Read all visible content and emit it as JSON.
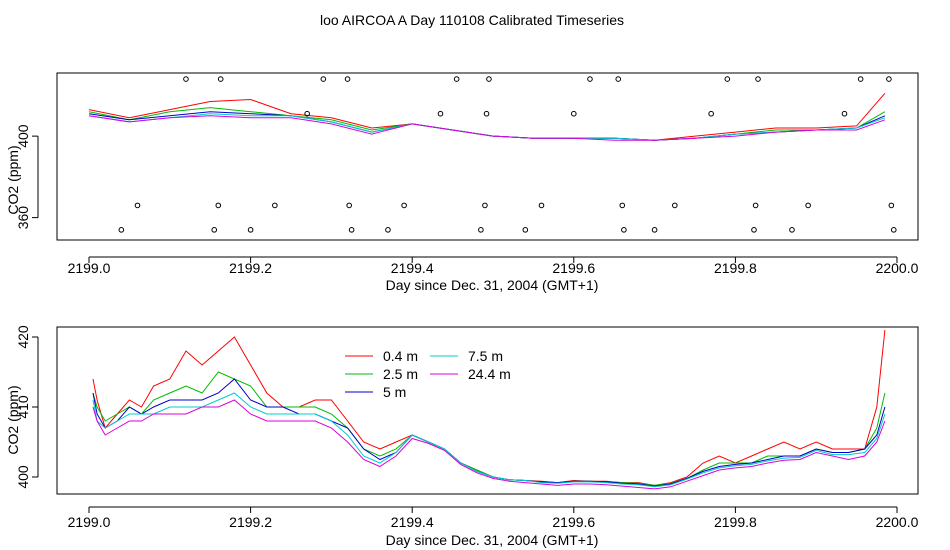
{
  "title": "loo AIRCOA A  Day 110108  Calibrated Timeseries",
  "colors": {
    "0.4 m": "#ff0000",
    "2.5 m": "#00bb00",
    "5 m": "#0000cc",
    "7.5 m": "#00cccc",
    "24.4 m": "#dd00dd"
  },
  "chart_data": [
    {
      "type": "line",
      "xlabel": "Day since Dec. 31, 2004 (GMT+1)",
      "ylabel": "CO2 (ppm)",
      "xlim": [
        2199.0,
        2200.0
      ],
      "ylim": [
        350,
        430
      ],
      "x_ticks": [
        "2199.0",
        "2199.2",
        "2199.4",
        "2199.6",
        "2199.8",
        "2200.0"
      ],
      "y_ticks": [
        "360",
        "400"
      ],
      "x": [
        2199.0,
        2199.05,
        2199.1,
        2199.15,
        2199.2,
        2199.25,
        2199.3,
        2199.35,
        2199.4,
        2199.45,
        2199.5,
        2199.55,
        2199.6,
        2199.65,
        2199.7,
        2199.75,
        2199.8,
        2199.85,
        2199.9,
        2199.95,
        2199.985
      ],
      "series": [
        {
          "name": "0.4 m",
          "values": [
            413,
            409,
            413,
            417,
            418,
            411,
            409,
            404,
            406,
            403,
            400,
            399,
            399,
            399,
            398,
            400,
            402,
            404,
            404,
            405,
            421
          ]
        },
        {
          "name": "2.5 m",
          "values": [
            412,
            408,
            412,
            414,
            412,
            410,
            408,
            403,
            406,
            403,
            400,
            399,
            399,
            399,
            398,
            399,
            401,
            403,
            403,
            404,
            412
          ]
        },
        {
          "name": "5 m",
          "values": [
            411,
            408,
            410,
            412,
            411,
            410,
            407,
            402,
            406,
            403,
            400,
            399,
            399,
            399,
            398,
            399,
            401,
            402,
            403,
            404,
            410
          ]
        },
        {
          "name": "7.5 m",
          "values": [
            410,
            407,
            409,
            411,
            410,
            410,
            407,
            402,
            406,
            403,
            400,
            399,
            399,
            399,
            398,
            399,
            401,
            402,
            403,
            404,
            409
          ]
        },
        {
          "name": "24.4 m",
          "values": [
            410,
            407,
            409,
            410,
            409,
            409,
            406,
            401,
            406,
            403,
            400,
            399,
            399,
            398,
            398,
            399,
            400,
            402,
            403,
            403,
            408
          ]
        }
      ],
      "markers": {
        "x": [
          2199.04,
          2199.06,
          2199.12,
          2199.155,
          2199.16,
          2199.163,
          2199.2,
          2199.23,
          2199.27,
          2199.29,
          2199.32,
          2199.322,
          2199.325,
          2199.37,
          2199.39,
          2199.435,
          2199.455,
          2199.485,
          2199.49,
          2199.492,
          2199.495,
          2199.54,
          2199.56,
          2199.6,
          2199.62,
          2199.655,
          2199.66,
          2199.662,
          2199.7,
          2199.725,
          2199.77,
          2199.79,
          2199.823,
          2199.825,
          2199.828,
          2199.87,
          2199.89,
          2199.935,
          2199.955,
          2199.99,
          2199.993,
          2199.996
        ],
        "y": [
          354,
          366,
          428,
          354,
          366,
          428,
          354,
          366,
          411,
          428,
          428,
          366,
          354,
          354,
          366,
          411,
          428,
          354,
          366,
          411,
          428,
          354,
          366,
          411,
          428,
          428,
          366,
          354,
          354,
          366,
          411,
          428,
          354,
          366,
          428,
          354,
          366,
          411,
          428,
          428,
          366,
          354
        ]
      }
    },
    {
      "type": "line",
      "xlabel": "Day since Dec. 31, 2004 (GMT+1)",
      "ylabel": "CO2 (ppm)",
      "xlim": [
        2199.0,
        2200.0
      ],
      "ylim": [
        398,
        421
      ],
      "x_ticks": [
        "2199.0",
        "2199.2",
        "2199.4",
        "2199.6",
        "2199.8",
        "2200.0"
      ],
      "y_ticks": [
        "400",
        "410",
        "420"
      ],
      "legend": [
        "0.4 m",
        "2.5 m",
        "5 m",
        "7.5 m",
        "24.4 m"
      ],
      "legend_position": "top-center",
      "x": [
        2199.005,
        2199.01,
        2199.02,
        2199.035,
        2199.05,
        2199.065,
        2199.08,
        2199.1,
        2199.12,
        2199.14,
        2199.16,
        2199.18,
        2199.2,
        2199.22,
        2199.24,
        2199.26,
        2199.28,
        2199.3,
        2199.32,
        2199.34,
        2199.36,
        2199.38,
        2199.4,
        2199.42,
        2199.44,
        2199.46,
        2199.48,
        2199.5,
        2199.52,
        2199.54,
        2199.56,
        2199.58,
        2199.6,
        2199.62,
        2199.64,
        2199.66,
        2199.68,
        2199.7,
        2199.72,
        2199.74,
        2199.76,
        2199.78,
        2199.8,
        2199.82,
        2199.84,
        2199.86,
        2199.88,
        2199.9,
        2199.92,
        2199.94,
        2199.96,
        2199.975,
        2199.985
      ],
      "series": [
        {
          "name": "0.4 m",
          "values": [
            414,
            411,
            407,
            409,
            411,
            410,
            413,
            414,
            418,
            416,
            418,
            420,
            416,
            412,
            410,
            410,
            411,
            411,
            408,
            405,
            404,
            405,
            406,
            405,
            404,
            402,
            401,
            400,
            399.6,
            399.5,
            399.4,
            399.2,
            399.5,
            399.4,
            399.4,
            399.2,
            399.2,
            398.8,
            399.2,
            400,
            402,
            403,
            402,
            403,
            404,
            405,
            404,
            405,
            404,
            404,
            404,
            410,
            421
          ]
        },
        {
          "name": "2.5 m",
          "values": [
            412,
            410,
            408,
            409,
            410,
            409,
            411,
            412,
            413,
            412,
            415,
            414,
            413,
            410,
            410,
            410,
            410,
            409,
            407,
            404,
            403,
            404,
            406,
            405,
            404,
            402,
            401,
            400,
            399.6,
            399.5,
            399.3,
            399.2,
            399.4,
            399.4,
            399.3,
            399.2,
            399.1,
            398.8,
            399.1,
            399.8,
            401,
            402,
            402,
            402,
            403,
            403,
            403,
            404,
            403.5,
            403.5,
            404,
            407,
            412
          ]
        },
        {
          "name": "5 m",
          "values": [
            412,
            409,
            407,
            408,
            410,
            409,
            410,
            411,
            411,
            411,
            412,
            414,
            411,
            410,
            410,
            409,
            409,
            408,
            407,
            404,
            402.5,
            403.5,
            406,
            405,
            404,
            402,
            400.8,
            400,
            399.6,
            399.5,
            399.3,
            399.2,
            399.4,
            399.4,
            399.3,
            399.1,
            399,
            398.7,
            399,
            399.8,
            400.8,
            401.5,
            401.8,
            402,
            402.5,
            403,
            403,
            404,
            403.5,
            403.5,
            404,
            406,
            410
          ]
        },
        {
          "name": "7.5 m",
          "values": [
            411,
            408,
            407,
            408,
            409,
            409,
            409,
            410,
            410,
            410,
            411,
            412,
            410,
            409,
            409,
            409,
            409,
            408,
            406,
            403,
            402,
            403.5,
            406,
            405,
            404,
            402,
            400.8,
            400,
            399.6,
            399.5,
            399.2,
            399.1,
            399.3,
            399.3,
            399.2,
            399,
            398.9,
            398.6,
            398.9,
            399.7,
            400.6,
            401.3,
            401.6,
            401.8,
            402.3,
            402.7,
            402.8,
            403.8,
            403.2,
            403.2,
            403.5,
            405.5,
            409
          ]
        },
        {
          "name": "24.4 m",
          "values": [
            410,
            408,
            406,
            407,
            408,
            408,
            409,
            409,
            409,
            410,
            410,
            411,
            409,
            408,
            408,
            408,
            408,
            407,
            405,
            402.5,
            401.5,
            403,
            405.5,
            404.8,
            403.8,
            401.8,
            400.6,
            399.8,
            399.4,
            399.2,
            399,
            398.8,
            399,
            399,
            398.9,
            398.7,
            398.5,
            398.3,
            398.6,
            399.4,
            400.2,
            401,
            401.3,
            401.5,
            402,
            402.4,
            402.5,
            403.5,
            403,
            402.5,
            403,
            405,
            408
          ]
        }
      ]
    }
  ]
}
